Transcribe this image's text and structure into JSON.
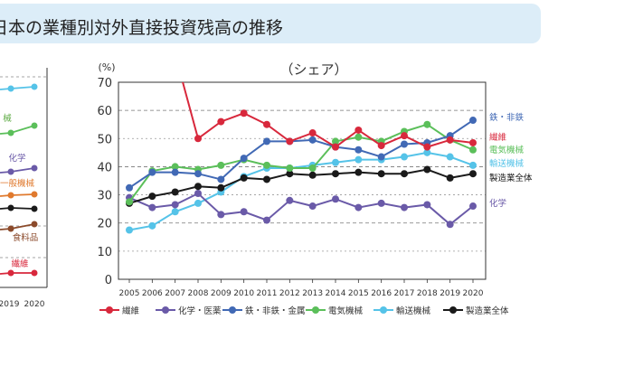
{
  "title": "日本の業種別対外直接投資残高の推移",
  "left_panel": {
    "labels": [
      {
        "text": "械",
        "color": "#5aa940"
      },
      {
        "text": "化学",
        "color": "#6a5aa8"
      },
      {
        "text": "一般機械",
        "color": "#e07a2e"
      },
      {
        "text": "食料品",
        "color": "#8b4a2b"
      },
      {
        "text": "繊維",
        "color": "#d8283c"
      }
    ],
    "ticks": [
      "2019",
      "2020"
    ]
  },
  "chart_data": {
    "type": "line",
    "title": "（シェア）",
    "ylabel": "(%)",
    "ylim": [
      0,
      70
    ],
    "yticks": [
      0,
      10,
      20,
      30,
      40,
      50,
      60,
      70
    ],
    "x": [
      "2005",
      "2006",
      "2007",
      "2008",
      "2009",
      "2010",
      "2011",
      "2012",
      "2013",
      "2014",
      "2015",
      "2016",
      "2017",
      "2018",
      "2019",
      "2020"
    ],
    "series": [
      {
        "name": "繊維",
        "color": "#d8283c",
        "values": [
          null,
          null,
          80,
          50,
          56,
          59,
          55,
          49,
          52,
          47,
          53,
          47.5,
          51,
          47,
          49.5,
          48.5
        ]
      },
      {
        "name": "化学・医薬",
        "color": "#6a5aa8",
        "values": [
          29,
          25.5,
          26.5,
          30.5,
          23,
          24,
          21,
          28,
          26,
          28.5,
          25.5,
          27,
          25.5,
          26.5,
          19.5,
          26
        ]
      },
      {
        "name": "鉄・非鉄・金属",
        "color": "#4169b5",
        "values": [
          32.5,
          38,
          38,
          37.5,
          35.5,
          43,
          49,
          49,
          49.5,
          47,
          46,
          43.5,
          48,
          48.5,
          51,
          56.5
        ]
      },
      {
        "name": "電気機械",
        "color": "#5bbf5a",
        "values": [
          27.5,
          38.5,
          40,
          39,
          40.5,
          42.5,
          40.5,
          39.5,
          39.5,
          49,
          50.5,
          49,
          52.5,
          55,
          49.5,
          46
        ]
      },
      {
        "name": "輸送機械",
        "color": "#55c3e8",
        "values": [
          17.5,
          19,
          24,
          27,
          31,
          36.5,
          39.5,
          39.5,
          40.5,
          41.5,
          42.5,
          42.5,
          43.5,
          45,
          43.5,
          40.5
        ]
      },
      {
        "name": "製造業全体",
        "color": "#1a1a1a",
        "values": [
          27,
          29.5,
          31,
          33,
          32.5,
          36,
          35.5,
          37.5,
          37,
          37.5,
          38,
          37.5,
          37.5,
          39,
          36,
          37.5
        ]
      }
    ],
    "right_labels": [
      {
        "text": "鉄・非鉄",
        "color": "#4169b5"
      },
      {
        "text": "繊維",
        "color": "#d8283c"
      },
      {
        "text": "電気機械",
        "color": "#5bbf5a"
      },
      {
        "text": "輸送機械",
        "color": "#55c3e8"
      },
      {
        "text": "製造業全体",
        "color": "#1a1a1a"
      },
      {
        "text": "化学",
        "color": "#6a5aa8"
      }
    ]
  }
}
